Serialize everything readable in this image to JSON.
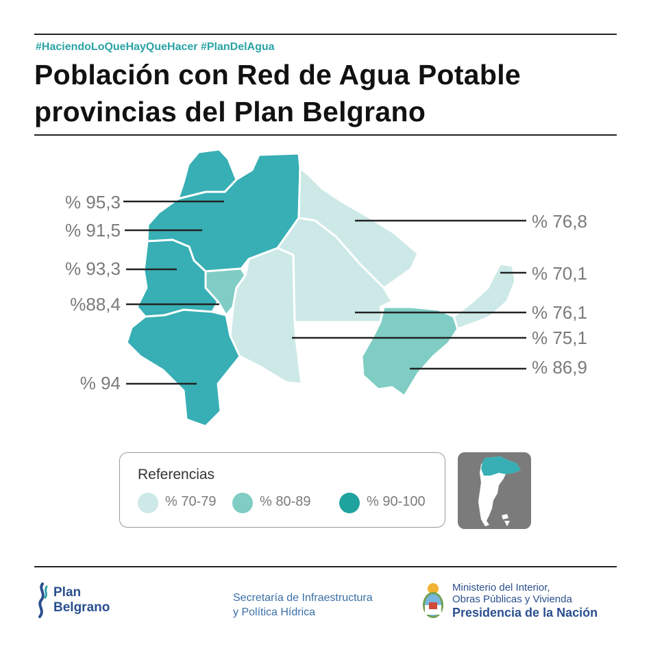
{
  "header": {
    "hashtags": "#HaciendoLoQueHayQueHacer #PlanDelAgua",
    "title_line1": "Población con Red de Agua Potable",
    "title_line2": "provincias del Plan Belgrano"
  },
  "colors": {
    "range_70_79": "#cce9e7",
    "range_80_89": "#7fcdc4",
    "range_90_100": "#37afb4",
    "accent_text": "#2aa3a6",
    "navy": "#2a4f8f"
  },
  "map": {
    "provinces": [
      {
        "value": "% 95,3",
        "range": "90-100"
      },
      {
        "value": "% 91,5",
        "range": "90-100"
      },
      {
        "value": "% 93,3",
        "range": "90-100"
      },
      {
        "value": "%88,4",
        "range": "80-89"
      },
      {
        "value": "% 94",
        "range": "90-100"
      },
      {
        "value": "% 76,8",
        "range": "70-79"
      },
      {
        "value": "% 70,1",
        "range": "70-79"
      },
      {
        "value": "% 76,1",
        "range": "70-79"
      },
      {
        "value": "% 75,1",
        "range": "70-79"
      },
      {
        "value": "% 86,9",
        "range": "80-89"
      }
    ]
  },
  "legend": {
    "title": "Referencias",
    "items": [
      {
        "label": "% 70-79"
      },
      {
        "label": "% 80-89"
      },
      {
        "label": "% 90-100"
      }
    ]
  },
  "footer": {
    "plan_line1": "Plan",
    "plan_line2": "Belgrano",
    "secretaria_line1": "Secretaría de Infraestructura",
    "secretaria_line2": "y Política Hídrica",
    "ministerio_line1": "Ministerio del Interior,",
    "ministerio_line2": "Obras Públicas y Vivienda",
    "presidencia": "Presidencia de la Nación"
  }
}
